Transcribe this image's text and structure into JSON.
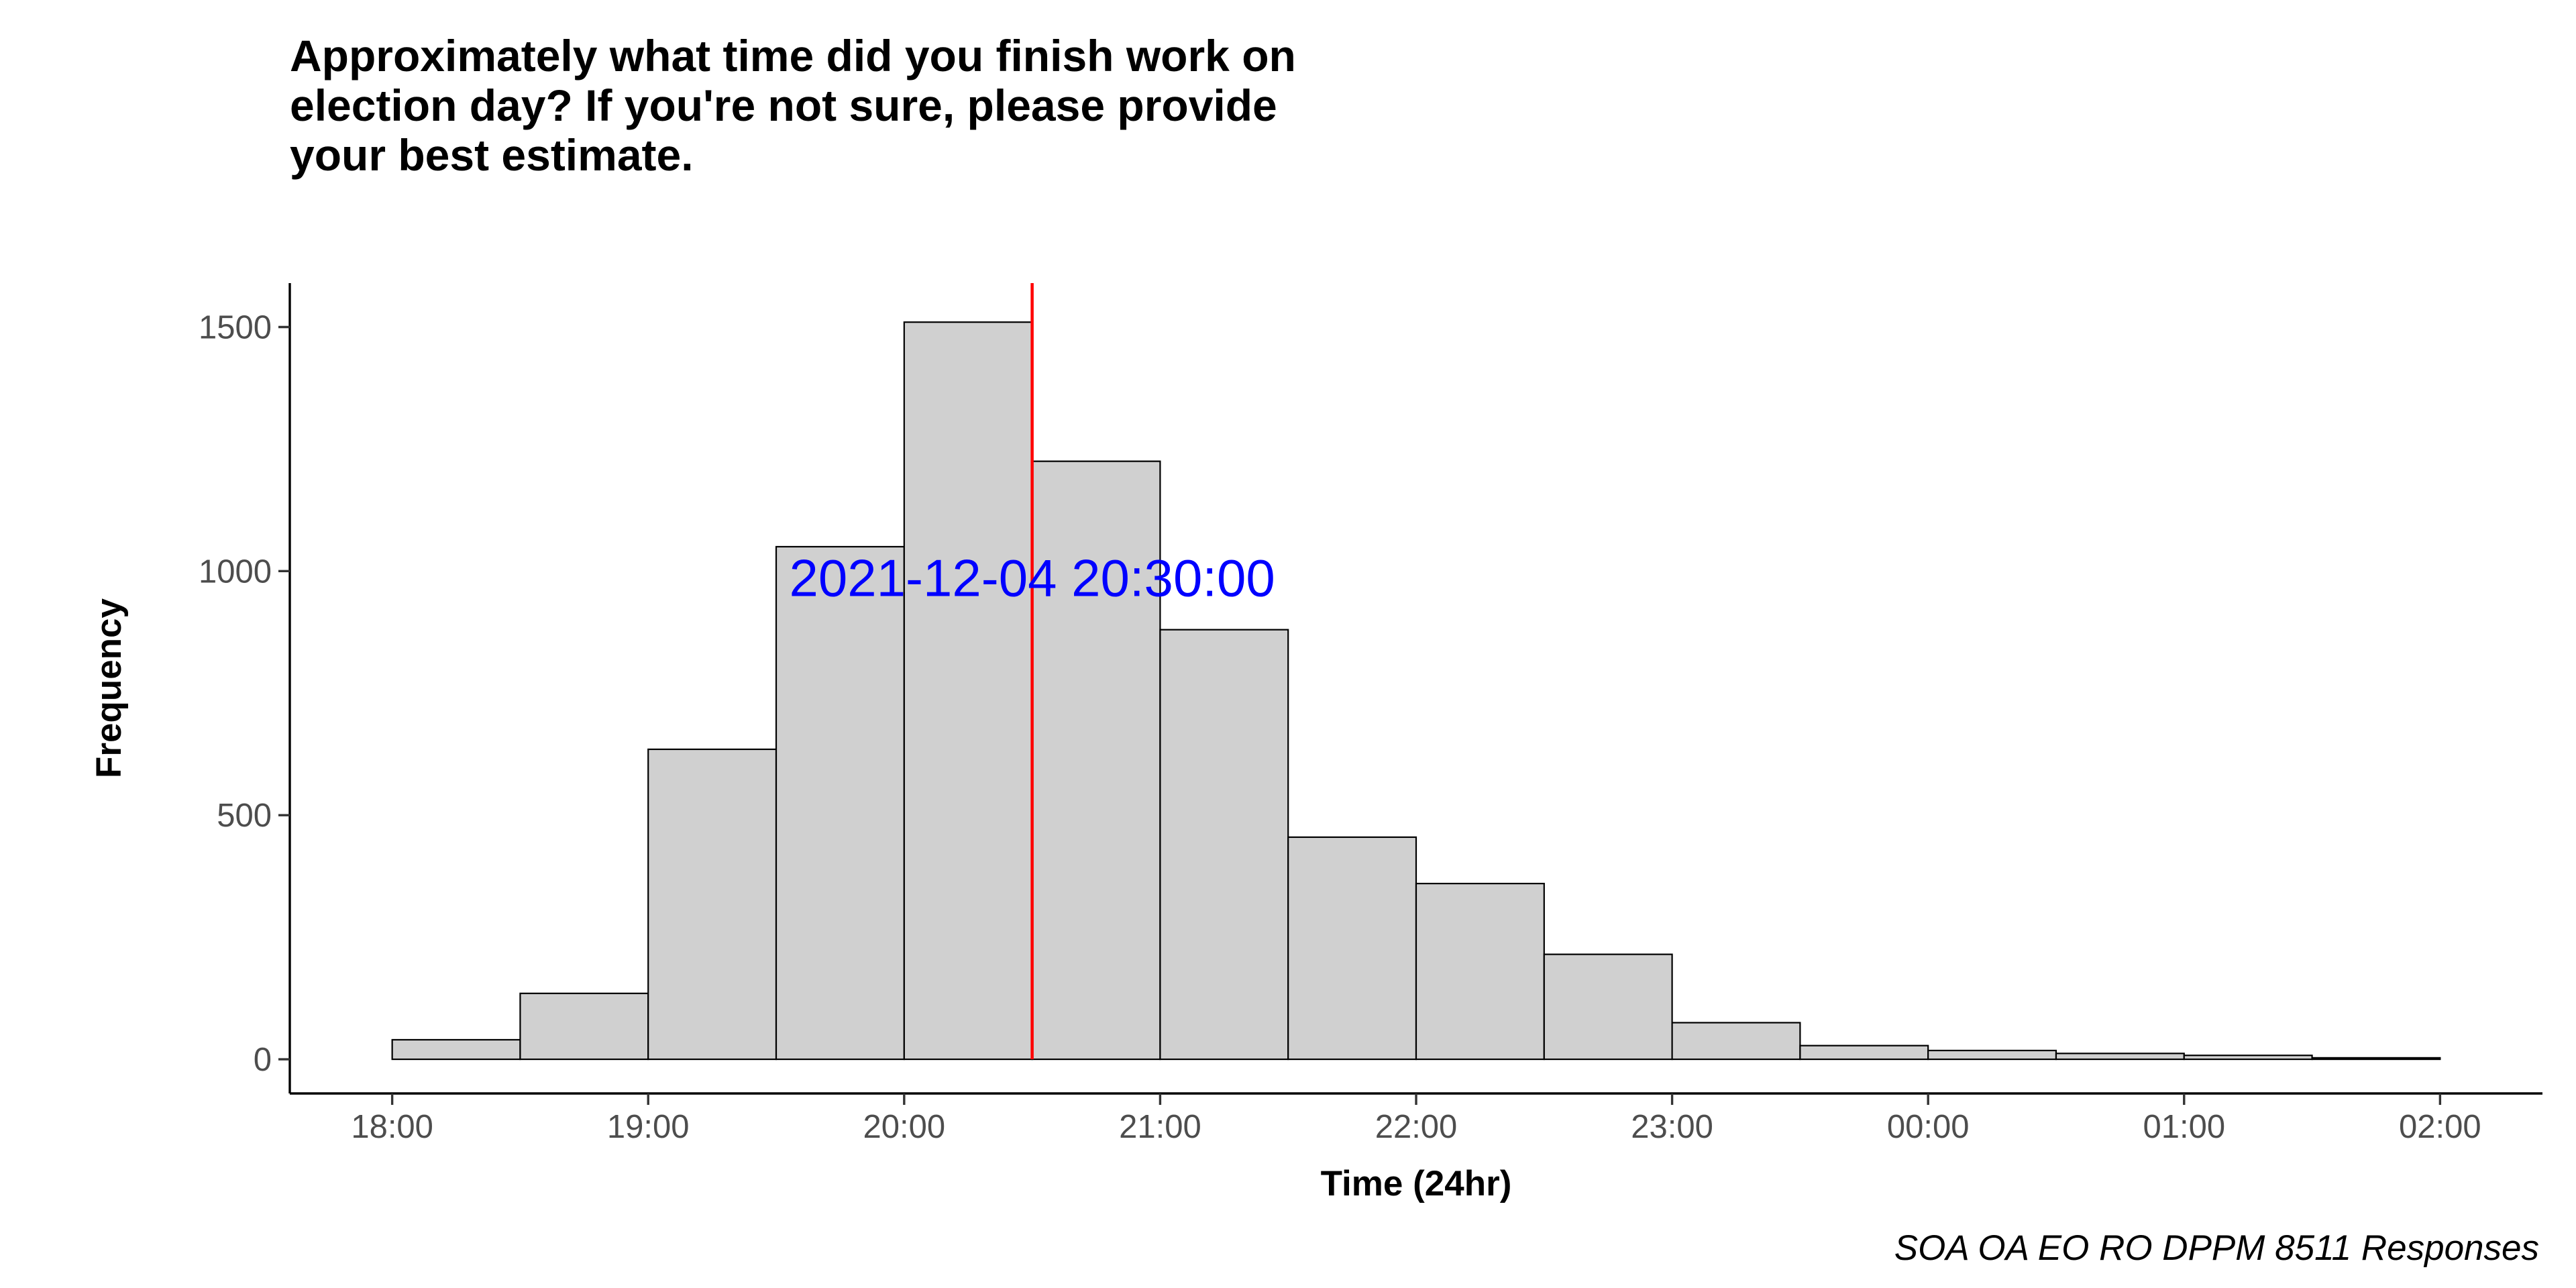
{
  "chart_data": {
    "type": "bar",
    "title_lines": [
      "Approximately what time did you finish work on",
      "election day? If you're not sure, please provide",
      "your best estimate."
    ],
    "xlabel": "Time (24hr)",
    "ylabel": "Frequency",
    "caption": "SOA OA EO RO DPPM 8511 Responses",
    "x_ticks": [
      "18:00",
      "19:00",
      "20:00",
      "21:00",
      "22:00",
      "23:00",
      "00:00",
      "01:00",
      "02:00"
    ],
    "x_tick_hours": [
      18,
      19,
      20,
      21,
      22,
      23,
      24,
      25,
      26
    ],
    "y_ticks": [
      0,
      500,
      1000,
      1500
    ],
    "xlim_hours": [
      17.6,
      26.4
    ],
    "ylim": [
      -70,
      1590
    ],
    "bin_width_hours": 0.5,
    "bins": [
      {
        "start": "18:00",
        "start_hours": 18.0,
        "value": 40
      },
      {
        "start": "18:30",
        "start_hours": 18.5,
        "value": 135
      },
      {
        "start": "19:00",
        "start_hours": 19.0,
        "value": 635
      },
      {
        "start": "19:30",
        "start_hours": 19.5,
        "value": 1050
      },
      {
        "start": "20:00",
        "start_hours": 20.0,
        "value": 1510
      },
      {
        "start": "20:30",
        "start_hours": 20.5,
        "value": 1225
      },
      {
        "start": "21:00",
        "start_hours": 21.0,
        "value": 880
      },
      {
        "start": "21:30",
        "start_hours": 21.5,
        "value": 455
      },
      {
        "start": "22:00",
        "start_hours": 22.0,
        "value": 360
      },
      {
        "start": "22:30",
        "start_hours": 22.5,
        "value": 215
      },
      {
        "start": "23:00",
        "start_hours": 23.0,
        "value": 75
      },
      {
        "start": "23:30",
        "start_hours": 23.5,
        "value": 28
      },
      {
        "start": "00:00",
        "start_hours": 24.0,
        "value": 18
      },
      {
        "start": "00:30",
        "start_hours": 24.5,
        "value": 12
      },
      {
        "start": "01:00",
        "start_hours": 25.0,
        "value": 8
      },
      {
        "start": "01:30",
        "start_hours": 25.5,
        "value": 3
      }
    ],
    "reference_line": {
      "label": "2021-12-04 20:30:00",
      "x_hours": 20.5,
      "label_y": 985,
      "line_color": "#ff0000",
      "label_color": "#0000ff"
    },
    "bar_fill": "#d0d0d0",
    "bar_stroke": "#000000",
    "grid": false,
    "legend": "none"
  }
}
